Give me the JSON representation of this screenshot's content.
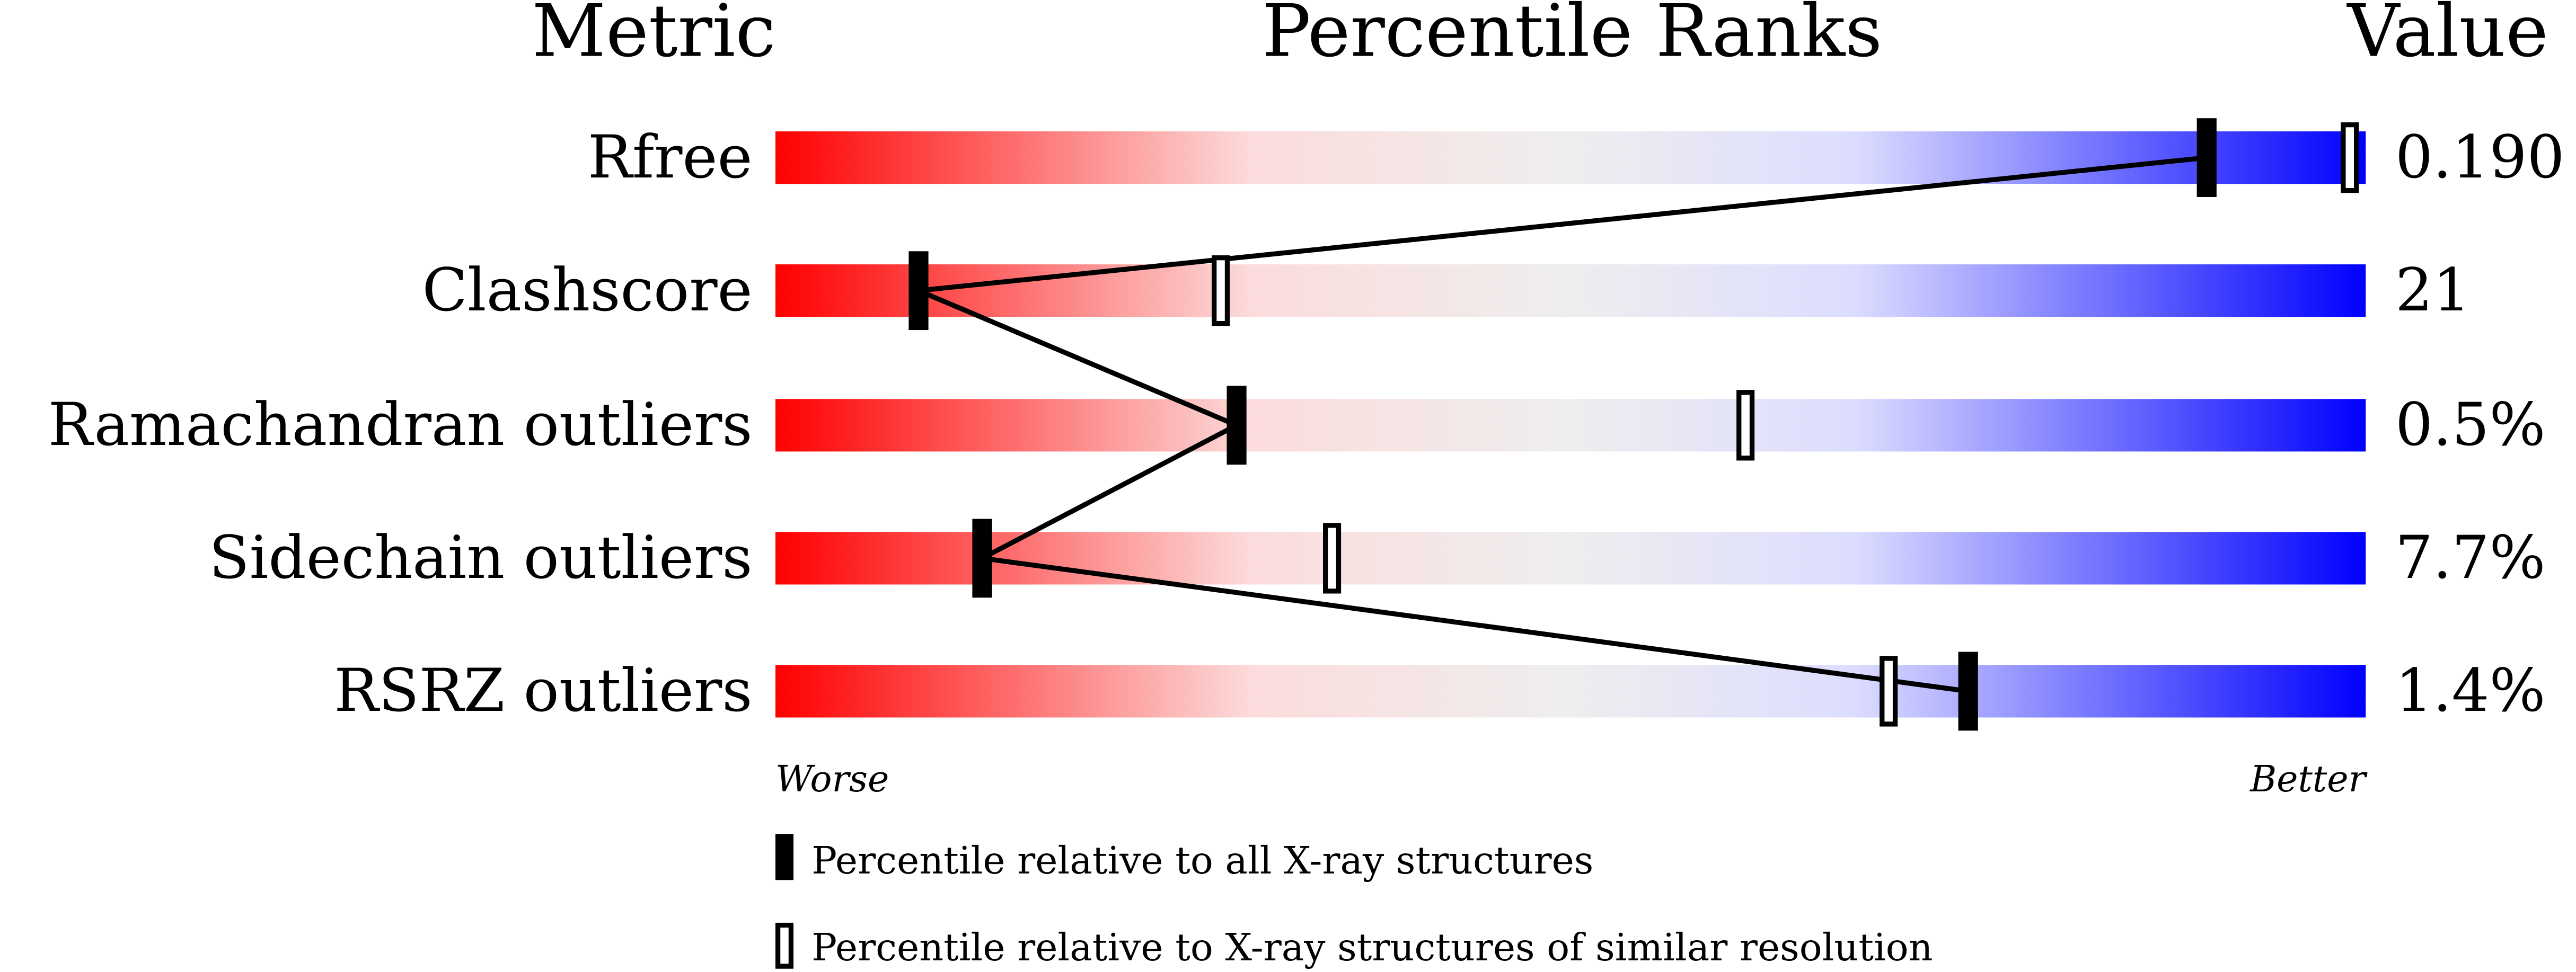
{
  "chart_data": {
    "type": "percentile-bar",
    "headers": {
      "metric": "Metric",
      "ranks": "Percentile Ranks",
      "value": "Value"
    },
    "axis": {
      "min": 0,
      "max": 100,
      "worse_label": "Worse",
      "better_label": "Better"
    },
    "gradient_colors": [
      "#ff0000",
      "#fcdcdc",
      "#eeeeee",
      "#dcdcff",
      "#0000ff"
    ],
    "metrics": [
      {
        "name": "Rfree",
        "value": "0.190",
        "percentile_all": 90,
        "percentile_similar": 99
      },
      {
        "name": "Clashscore",
        "value": "21",
        "percentile_all": 9,
        "percentile_similar": 28
      },
      {
        "name": "Ramachandran outliers",
        "value": "0.5%",
        "percentile_all": 29,
        "percentile_similar": 61
      },
      {
        "name": "Sidechain outliers",
        "value": "7.7%",
        "percentile_all": 13,
        "percentile_similar": 35
      },
      {
        "name": "RSRZ outliers",
        "value": "1.4%",
        "percentile_all": 75,
        "percentile_similar": 70
      }
    ],
    "legend": {
      "filled": "Percentile relative to all X-ray structures",
      "open": "Percentile relative to X-ray structures of similar resolution"
    }
  }
}
